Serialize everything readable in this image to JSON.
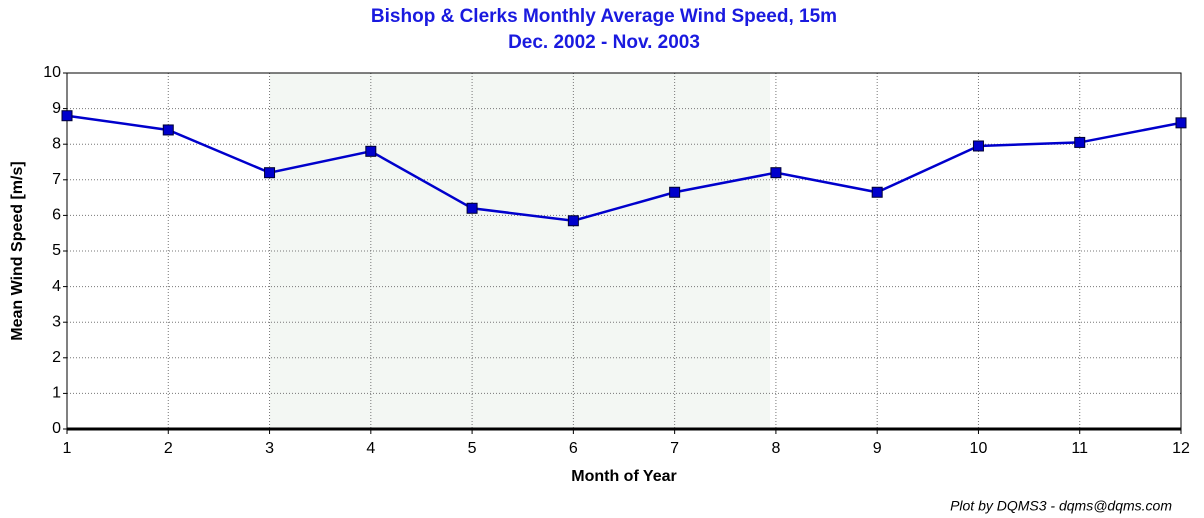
{
  "chart_data": {
    "type": "line",
    "title": "Bishop & Clerks Monthly Average Wind Speed, 15m",
    "subtitle": "Dec. 2002 - Nov. 2003",
    "x_label": "Month of Year",
    "y_label": "Mean Wind Speed [m/s]",
    "credit": "Plot by DQMS3 - dqms@dqms.com",
    "x": [
      1,
      2,
      3,
      4,
      5,
      6,
      7,
      8,
      9,
      10,
      11,
      12
    ],
    "values": [
      8.8,
      8.4,
      7.2,
      7.8,
      6.2,
      5.85,
      6.65,
      7.2,
      6.65,
      7.95,
      8.05,
      8.6
    ],
    "color": "#0000cc",
    "xlim": [
      1,
      12
    ],
    "xticks": [
      1,
      2,
      3,
      4,
      5,
      6,
      7,
      8,
      9,
      10,
      11,
      12
    ],
    "ylim": [
      0,
      10
    ],
    "yticks": [
      0,
      1,
      2,
      3,
      4,
      5,
      6,
      7,
      8,
      9,
      10
    ],
    "grid": true
  }
}
